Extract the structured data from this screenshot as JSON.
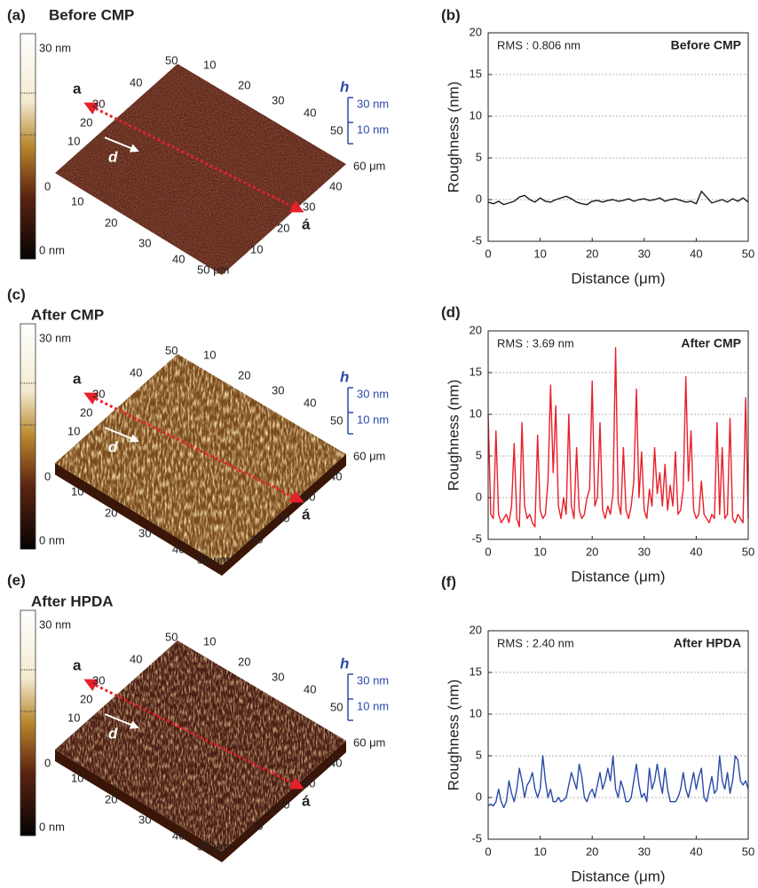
{
  "afm_panels": [
    {
      "label": "(a)",
      "title": "Before CMP",
      "colorbar": {
        "max": "30 nm",
        "mid": "0",
        "min": "0 nm"
      },
      "markers": {
        "start": "a",
        "end": "á",
        "direction": "d"
      },
      "height_scale": {
        "symbol": "h",
        "labels": [
          "30 nm",
          "10 nm"
        ]
      },
      "axis_back_left": [
        "10",
        "20",
        "30",
        "40",
        "50"
      ],
      "axis_back_right": [
        "10",
        "20",
        "30",
        "40",
        "50"
      ],
      "axis_front_left": [
        "10",
        "20",
        "30",
        "40"
      ],
      "axis_front_right": [
        "10",
        "20",
        "30",
        "40"
      ],
      "x_unit_label": "50 μm",
      "y_unit_label": "60 μm"
    },
    {
      "label": "(c)",
      "title": "After CMP",
      "colorbar": {
        "max": "30 nm",
        "mid": "0",
        "min": "0 nm"
      },
      "markers": {
        "start": "a",
        "end": "á",
        "direction": "d"
      },
      "height_scale": {
        "symbol": "h",
        "labels": [
          "30 nm",
          "10 nm"
        ]
      },
      "axis_back_left": [
        "10",
        "20",
        "30",
        "40",
        "50"
      ],
      "axis_back_right": [
        "10",
        "20",
        "30",
        "40",
        "50"
      ],
      "axis_front_left": [
        "10",
        "20",
        "30",
        "40"
      ],
      "axis_front_right": [
        "10",
        "20",
        "30",
        "40"
      ],
      "x_unit_label": "50 μm",
      "y_unit_label": "60 μm"
    },
    {
      "label": "(e)",
      "title": "After HPDA",
      "colorbar": {
        "max": "30 nm",
        "mid": "0",
        "min": "0 nm"
      },
      "markers": {
        "start": "a",
        "end": "á",
        "direction": "d"
      },
      "height_scale": {
        "symbol": "h",
        "labels": [
          "30 nm",
          "10 nm"
        ]
      },
      "axis_back_left": [
        "10",
        "20",
        "30",
        "40",
        "50"
      ],
      "axis_back_right": [
        "10",
        "20",
        "30",
        "40",
        "50"
      ],
      "axis_front_left": [
        "10",
        "20",
        "30",
        "40"
      ],
      "axis_front_right": [
        "10",
        "20",
        "30",
        "40"
      ],
      "x_unit_label": "50 μm",
      "y_unit_label": "60 μm"
    }
  ],
  "chart_data": [
    {
      "type": "line",
      "panel_label": "(b)",
      "title": "Before CMP",
      "annotation": "RMS : 0.806 nm",
      "x_label": "Distance (μm)",
      "y_label": "Roughness (nm)",
      "xlim": [
        0,
        50
      ],
      "xticks": [
        0,
        10,
        20,
        30,
        40,
        50
      ],
      "ylim": [
        -5,
        20
      ],
      "yticks": [
        -5,
        0,
        5,
        10,
        15,
        20
      ],
      "grid": true,
      "x": [
        0,
        1,
        2,
        3,
        4,
        5,
        6,
        7,
        8,
        9,
        10,
        11,
        12,
        13,
        14,
        15,
        16,
        17,
        18,
        19,
        20,
        21,
        22,
        23,
        24,
        25,
        26,
        27,
        28,
        29,
        30,
        31,
        32,
        33,
        34,
        35,
        36,
        37,
        38,
        39,
        40,
        41,
        42,
        43,
        44,
        45,
        46,
        47,
        48,
        49,
        50
      ],
      "series": [
        {
          "color": "#1a1a1a",
          "values": [
            -0.3,
            -0.5,
            -0.2,
            -0.6,
            -0.4,
            -0.2,
            0.3,
            0.5,
            0,
            -0.3,
            0.2,
            -0.2,
            -0.3,
            0,
            0.2,
            0.4,
            0.1,
            -0.3,
            -0.5,
            -0.6,
            -0.2,
            -0.1,
            -0.3,
            -0.1,
            0,
            -0.2,
            -0.1,
            0.1,
            -0.2,
            0,
            0.1,
            -0.1,
            0,
            0.2,
            -0.2,
            0,
            0.1,
            -0.1,
            -0.3,
            -0.2,
            -0.5,
            1,
            0.3,
            -0.4,
            -0.2,
            0,
            -0.3,
            0.1,
            -0.2,
            0.2,
            -0.3
          ]
        }
      ]
    },
    {
      "type": "line",
      "panel_label": "(d)",
      "title": "After CMP",
      "annotation": "RMS : 3.69 nm",
      "x_label": "Distance (μm)",
      "y_label": "Roughness (nm)",
      "xlim": [
        0,
        50
      ],
      "xticks": [
        0,
        10,
        20,
        30,
        40,
        50
      ],
      "ylim": [
        -5,
        20
      ],
      "yticks": [
        -5,
        0,
        5,
        10,
        15,
        20
      ],
      "grid": true,
      "x": [
        0,
        0.5,
        1,
        1.5,
        2,
        2.5,
        3,
        3.5,
        4,
        4.5,
        5,
        5.5,
        6,
        6.5,
        7,
        7.5,
        8,
        8.5,
        9,
        9.5,
        10,
        10.5,
        11,
        11.5,
        12,
        12.5,
        13,
        13.5,
        14,
        14.5,
        15,
        15.5,
        16,
        16.5,
        17,
        17.5,
        18,
        18.5,
        19,
        19.5,
        20,
        20.5,
        21,
        21.5,
        22,
        22.5,
        23,
        23.5,
        24,
        24.5,
        25,
        25.5,
        26,
        26.5,
        27,
        27.5,
        28,
        28.5,
        29,
        29.5,
        30,
        30.5,
        31,
        31.5,
        32,
        32.5,
        33,
        33.5,
        34,
        34.5,
        35,
        35.5,
        36,
        36.5,
        37,
        37.5,
        38,
        38.5,
        39,
        39.5,
        40,
        40.5,
        41,
        41.5,
        42,
        42.5,
        43,
        43.5,
        44,
        44.5,
        45,
        45.5,
        46,
        46.5,
        47,
        47.5,
        48,
        48.5,
        49,
        49.5,
        50
      ],
      "series": [
        {
          "color": "#e8202a",
          "values": [
            10,
            -2,
            -2.5,
            8,
            -2,
            -3,
            -2.5,
            -2,
            -3,
            -1,
            6.5,
            -2.5,
            -3.5,
            9,
            -1,
            -2.5,
            -2,
            -3,
            -3.5,
            7.5,
            -1.5,
            -2.5,
            -2,
            2,
            13.5,
            3,
            11,
            -1,
            -2.5,
            0,
            -2,
            10,
            -1,
            -2.5,
            6,
            -1.5,
            -2.5,
            -2,
            0,
            1,
            14,
            -1,
            0,
            9,
            -1.5,
            -2.5,
            -1,
            -2,
            0.5,
            18,
            -0.5,
            -2,
            6,
            -1.5,
            -2.5,
            -1,
            2,
            13,
            0,
            5.5,
            -1.5,
            -2.5,
            1,
            -1,
            6,
            0.5,
            3,
            -1,
            4,
            -1.5,
            1.5,
            -1,
            5.5,
            -2,
            -1.5,
            1,
            14.5,
            2,
            8,
            -1.5,
            -2.5,
            -2,
            2,
            -2,
            -2.5,
            -3,
            -2,
            -2.5,
            9,
            -2,
            6,
            -2.5,
            -2,
            9.5,
            -2.5,
            -3,
            -2,
            -2.5,
            -3,
            12,
            -2.5
          ]
        }
      ]
    },
    {
      "type": "line",
      "panel_label": "(f)",
      "title": "After HPDA",
      "annotation": "RMS : 2.40 nm",
      "x_label": "Distance (μm)",
      "y_label": "Roughness (nm)",
      "xlim": [
        0,
        50
      ],
      "xticks": [
        0,
        10,
        20,
        30,
        40,
        50
      ],
      "ylim": [
        -5,
        20
      ],
      "yticks": [
        -5,
        0,
        5,
        10,
        15,
        20
      ],
      "grid": true,
      "x": [
        0,
        0.5,
        1,
        1.5,
        2,
        2.5,
        3,
        3.5,
        4,
        4.5,
        5,
        5.5,
        6,
        6.5,
        7,
        7.5,
        8,
        8.5,
        9,
        9.5,
        10,
        10.5,
        11,
        11.5,
        12,
        12.5,
        13,
        13.5,
        14,
        14.5,
        15,
        15.5,
        16,
        16.5,
        17,
        17.5,
        18,
        18.5,
        19,
        19.5,
        20,
        20.5,
        21,
        21.5,
        22,
        22.5,
        23,
        23.5,
        24,
        24.5,
        25,
        25.5,
        26,
        26.5,
        27,
        27.5,
        28,
        28.5,
        29,
        29.5,
        30,
        30.5,
        31,
        31.5,
        32,
        32.5,
        33,
        33.5,
        34,
        34.5,
        35,
        35.5,
        36,
        36.5,
        37,
        37.5,
        38,
        38.5,
        39,
        39.5,
        40,
        40.5,
        41,
        41.5,
        42,
        42.5,
        43,
        43.5,
        44,
        44.5,
        45,
        45.5,
        46,
        46.5,
        47,
        47.5,
        48,
        48.5,
        49,
        49.5,
        50
      ],
      "series": [
        {
          "color": "#2a4aa8",
          "values": [
            -1,
            -0.8,
            -1,
            -0.5,
            1,
            -0.5,
            -1.2,
            -0.5,
            2,
            0.5,
            -0.5,
            1,
            3.5,
            2,
            0,
            1.5,
            2,
            3,
            1,
            0,
            1,
            5,
            2,
            0,
            1,
            -0.5,
            -0.5,
            0,
            -0.5,
            -0.3,
            0,
            1.5,
            3,
            2,
            1,
            4,
            2.5,
            0,
            -0.5,
            0.5,
            1,
            0,
            1.5,
            3,
            1,
            2,
            3.5,
            2,
            5,
            1,
            0,
            2,
            1,
            -0.5,
            -0.5,
            0,
            2,
            4,
            1.5,
            0,
            0.5,
            -0.5,
            3.5,
            1,
            2,
            4,
            2,
            0.5,
            3.5,
            1,
            -0.5,
            -0.5,
            -0.5,
            0,
            1,
            3,
            1,
            0,
            1.5,
            3,
            1,
            2.5,
            3.5,
            0,
            -0.5,
            1,
            2.5,
            0.5,
            1,
            5,
            2,
            1,
            3,
            0.5,
            2,
            5,
            4.5,
            2,
            1.5,
            2,
            1
          ]
        }
      ]
    }
  ]
}
